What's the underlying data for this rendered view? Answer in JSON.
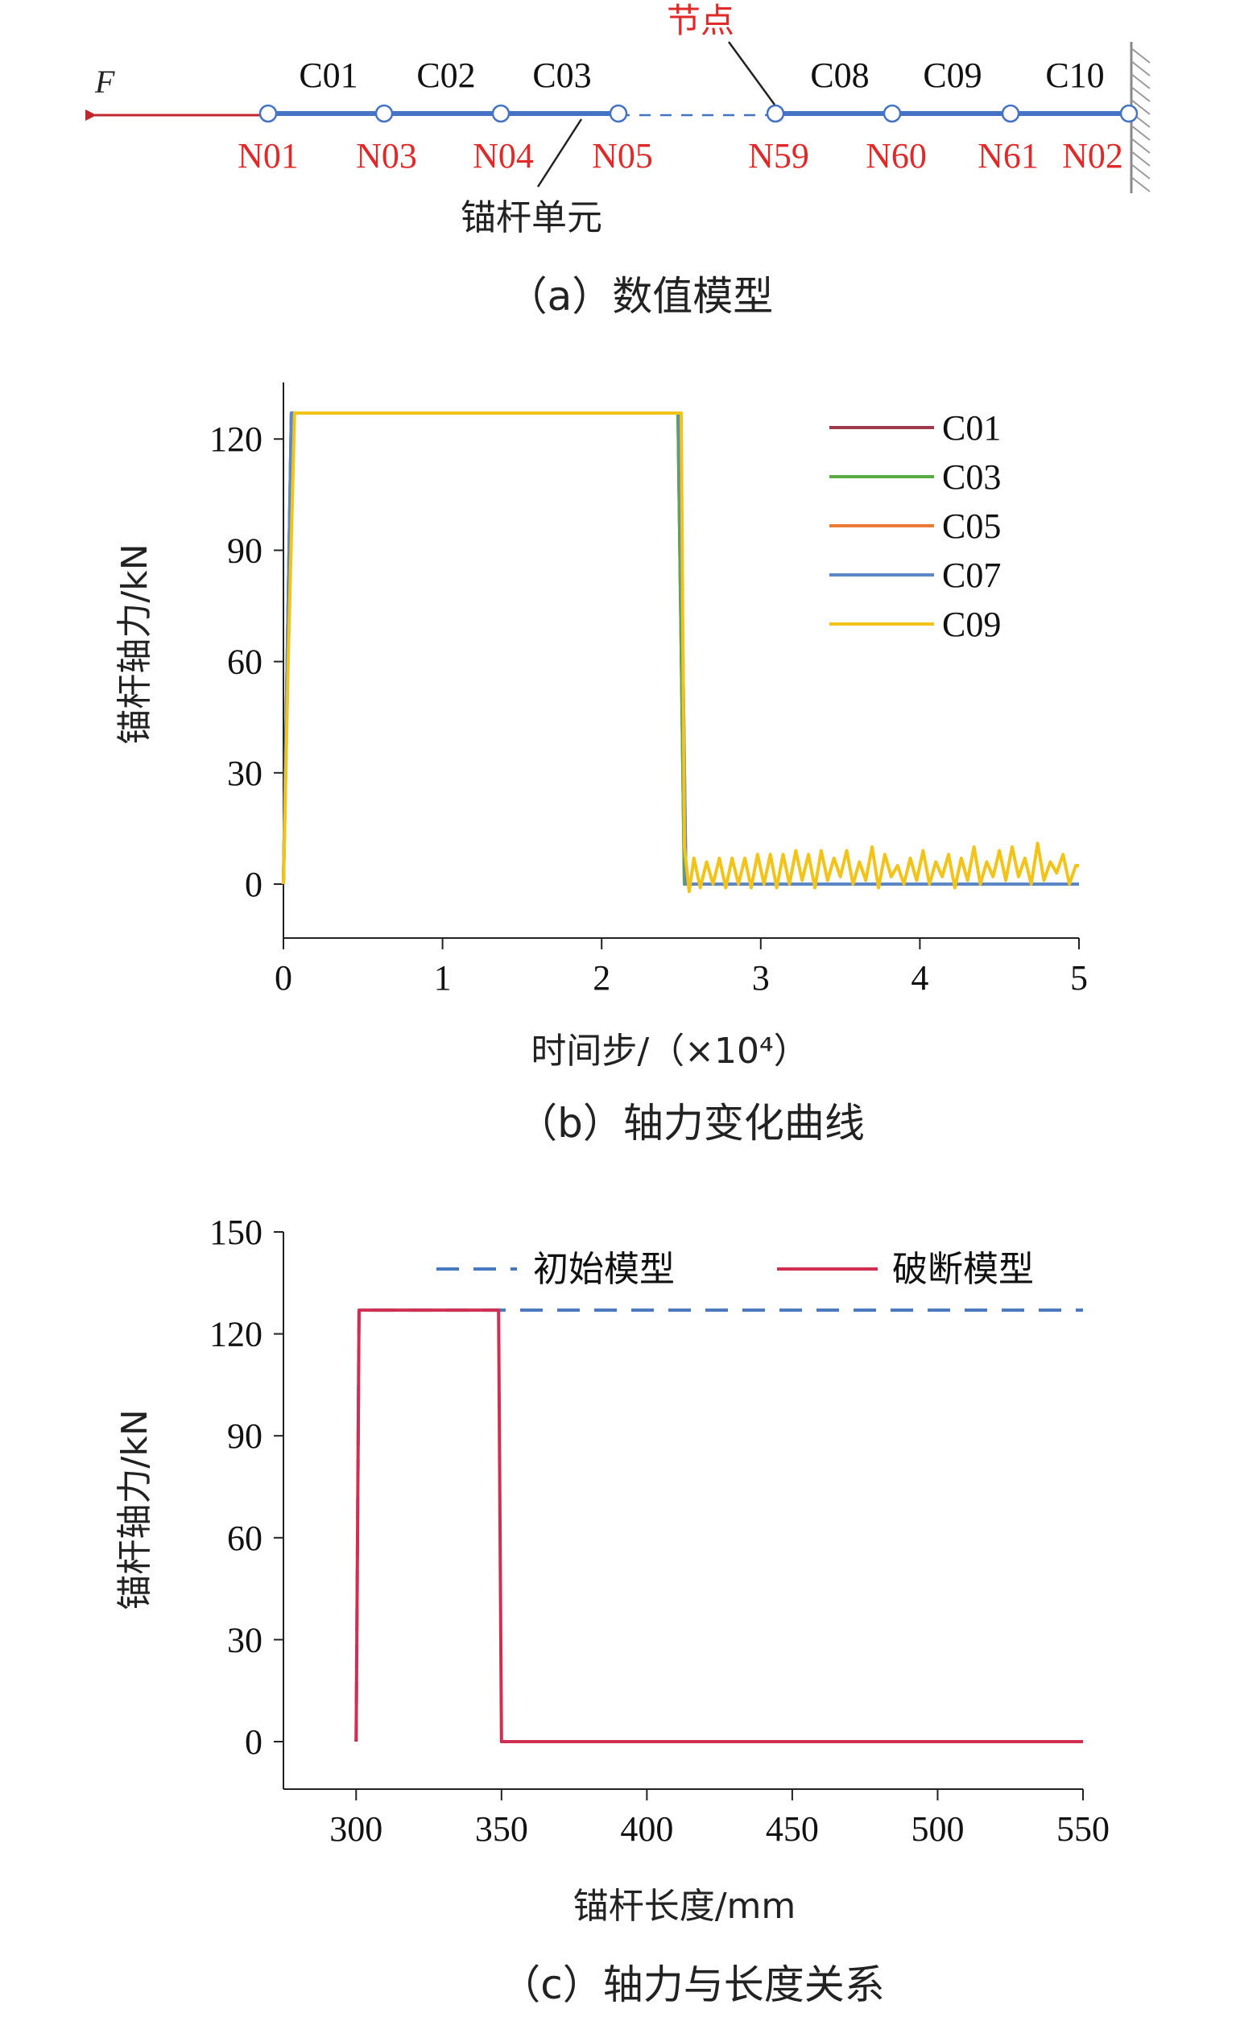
{
  "panel_a": {
    "force_label": "F",
    "node_annotation": "节点",
    "element_annotation": "锚杆单元",
    "caption": "（a）数值模型",
    "element_labels": [
      "C01",
      "C02",
      "C03",
      "C08",
      "C09",
      "C10"
    ],
    "node_labels": [
      "N01",
      "N03",
      "N04",
      "N05",
      "N59",
      "N60",
      "N61",
      "N02"
    ],
    "colors": {
      "rod": "#4472c4",
      "label_red": "#e02a2a",
      "force_arrow": "#c0282d"
    }
  },
  "chart_data": [
    {
      "type": "line",
      "title": "",
      "caption": "（b）轴力变化曲线",
      "xlabel": "时间步/（×10⁴）",
      "ylabel": "锚杆轴力/kN",
      "xlim": [
        0,
        5
      ],
      "ylim": [
        0,
        127
      ],
      "xticks": [
        "0",
        "1",
        "2",
        "3",
        "4",
        "5"
      ],
      "yticks": [
        "0",
        "30",
        "60",
        "90",
        "120"
      ],
      "legend_position": "top-right",
      "series": [
        {
          "name": "C01",
          "color": "#9e3a4a",
          "x": [
            0,
            0.05,
            0.08,
            2.48,
            2.52,
            5
          ],
          "y": [
            0,
            127,
            127,
            127,
            0,
            0
          ]
        },
        {
          "name": "C03",
          "color": "#5aaa46",
          "x": [
            0,
            0.05,
            0.08,
            2.48,
            2.52,
            5
          ],
          "y": [
            0,
            127,
            127,
            127,
            0,
            0
          ]
        },
        {
          "name": "C05",
          "color": "#ec7a34",
          "x": [
            0,
            0.06,
            0.09,
            2.49,
            2.53,
            5
          ],
          "y": [
            0,
            127,
            127,
            127,
            0,
            0
          ]
        },
        {
          "name": "C07",
          "color": "#5b87c7",
          "x": [
            0,
            0.05,
            0.08,
            2.49,
            2.53,
            5
          ],
          "y": [
            0,
            127,
            127,
            127,
            0,
            0
          ]
        },
        {
          "name": "C09",
          "color": "#f2c41a",
          "x": [
            0,
            0.03,
            0.07,
            0.1,
            2.5,
            2.52,
            2.55,
            2.58,
            2.62,
            2.66,
            2.7,
            2.74,
            2.78,
            2.82,
            2.86,
            2.9,
            2.94,
            2.98,
            3.02,
            3.06,
            3.1,
            3.14,
            3.18,
            3.22,
            3.26,
            3.3,
            3.34,
            3.38,
            3.42,
            3.46,
            3.5,
            3.54,
            3.58,
            3.62,
            3.66,
            3.7,
            3.74,
            3.78,
            3.82,
            3.86,
            3.9,
            3.94,
            3.98,
            4.02,
            4.06,
            4.1,
            4.14,
            4.18,
            4.22,
            4.26,
            4.3,
            4.34,
            4.38,
            4.42,
            4.46,
            4.5,
            4.54,
            4.58,
            4.62,
            4.66,
            4.7,
            4.74,
            4.78,
            4.82,
            4.86,
            4.9,
            4.94,
            4.98,
            5
          ],
          "y": [
            0,
            60,
            127,
            127,
            127,
            10,
            -2,
            7,
            -1,
            6,
            0,
            7,
            -1,
            7,
            0,
            7,
            -1,
            8,
            0,
            8,
            -1,
            8,
            0,
            9,
            1,
            8,
            -1,
            9,
            1,
            7,
            2,
            9,
            0,
            6,
            1,
            10,
            -1,
            8,
            2,
            5,
            0,
            7,
            1,
            9,
            0,
            6,
            2,
            8,
            -1,
            7,
            1,
            10,
            0,
            6,
            2,
            9,
            1,
            10,
            2,
            7,
            0,
            11,
            1,
            6,
            3,
            8,
            0,
            5,
            5
          ]
        }
      ]
    },
    {
      "type": "line",
      "title": "",
      "caption": "（c）轴力与长度关系",
      "xlabel": "锚杆长度/mm",
      "ylabel": "锚杆轴力/kN",
      "xlim": [
        275,
        550
      ],
      "ylim": [
        0,
        150
      ],
      "xticks": [
        "300",
        "350",
        "400",
        "450",
        "500",
        "550"
      ],
      "yticks": [
        "0",
        "30",
        "60",
        "90",
        "120",
        "150"
      ],
      "legend_position": "top",
      "series": [
        {
          "name": "初始模型",
          "color": "#4a78bf",
          "style": "dashed",
          "x": [
            300,
            301,
            550
          ],
          "y": [
            0,
            127,
            127
          ]
        },
        {
          "name": "破断模型",
          "color": "#d02f52",
          "style": "solid",
          "x": [
            300,
            301,
            349,
            350,
            550
          ],
          "y": [
            0,
            127,
            127,
            0,
            0
          ]
        }
      ]
    }
  ]
}
